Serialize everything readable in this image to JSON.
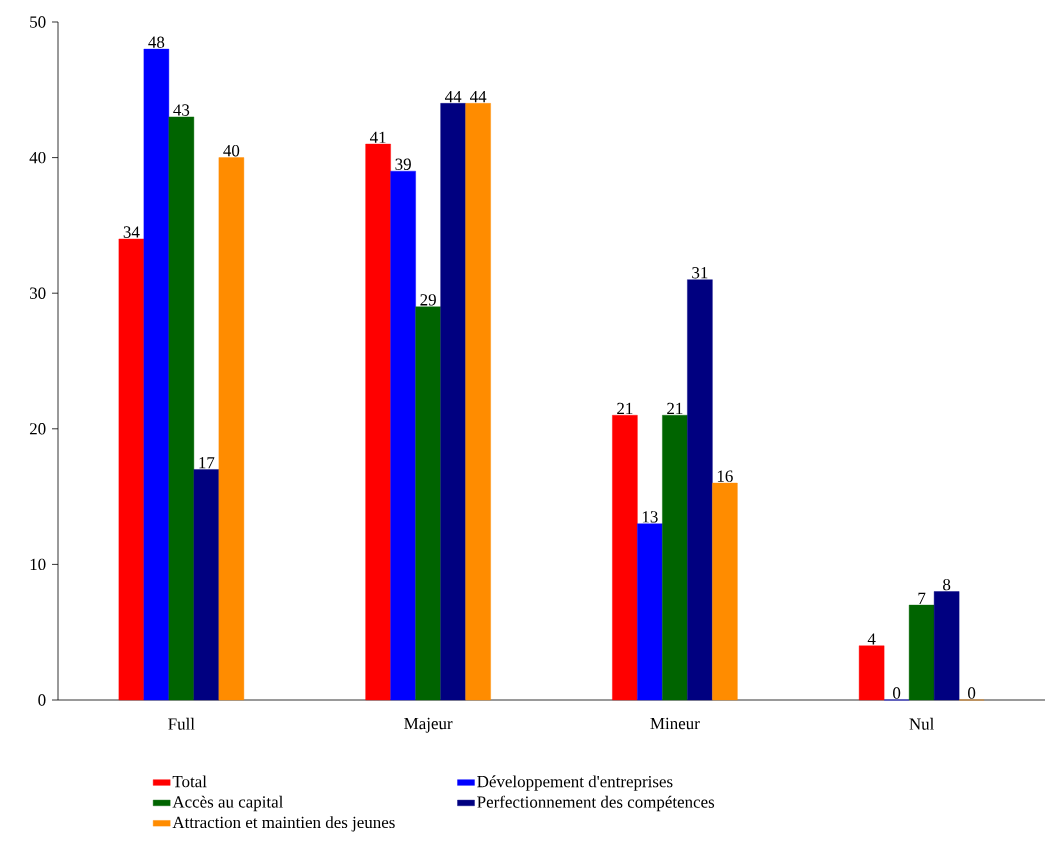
{
  "chart_data": {
    "type": "bar",
    "categories": [
      "Full",
      "Majeur",
      "Mineur",
      "Nul"
    ],
    "series": [
      {
        "name": "Total",
        "color": "#ff0000",
        "values": [
          34,
          41,
          21,
          4
        ]
      },
      {
        "name": "Développement d'entreprises",
        "color": "#0000ff",
        "values": [
          48,
          39,
          13,
          0
        ]
      },
      {
        "name": "Accès au capital",
        "color": "#006400",
        "values": [
          43,
          29,
          21,
          7
        ]
      },
      {
        "name": "Perfectionnement des compétences",
        "color": "#000080",
        "values": [
          17,
          44,
          31,
          8
        ]
      },
      {
        "name": "Attraction et maintien des jeunes",
        "color": "#ff8c00",
        "values": [
          40,
          44,
          16,
          0
        ]
      }
    ],
    "ylim": [
      0,
      50
    ],
    "yticks": [
      0,
      10,
      20,
      30,
      40,
      50
    ],
    "data_labels": true,
    "legend": "bottom",
    "grid": false
  }
}
